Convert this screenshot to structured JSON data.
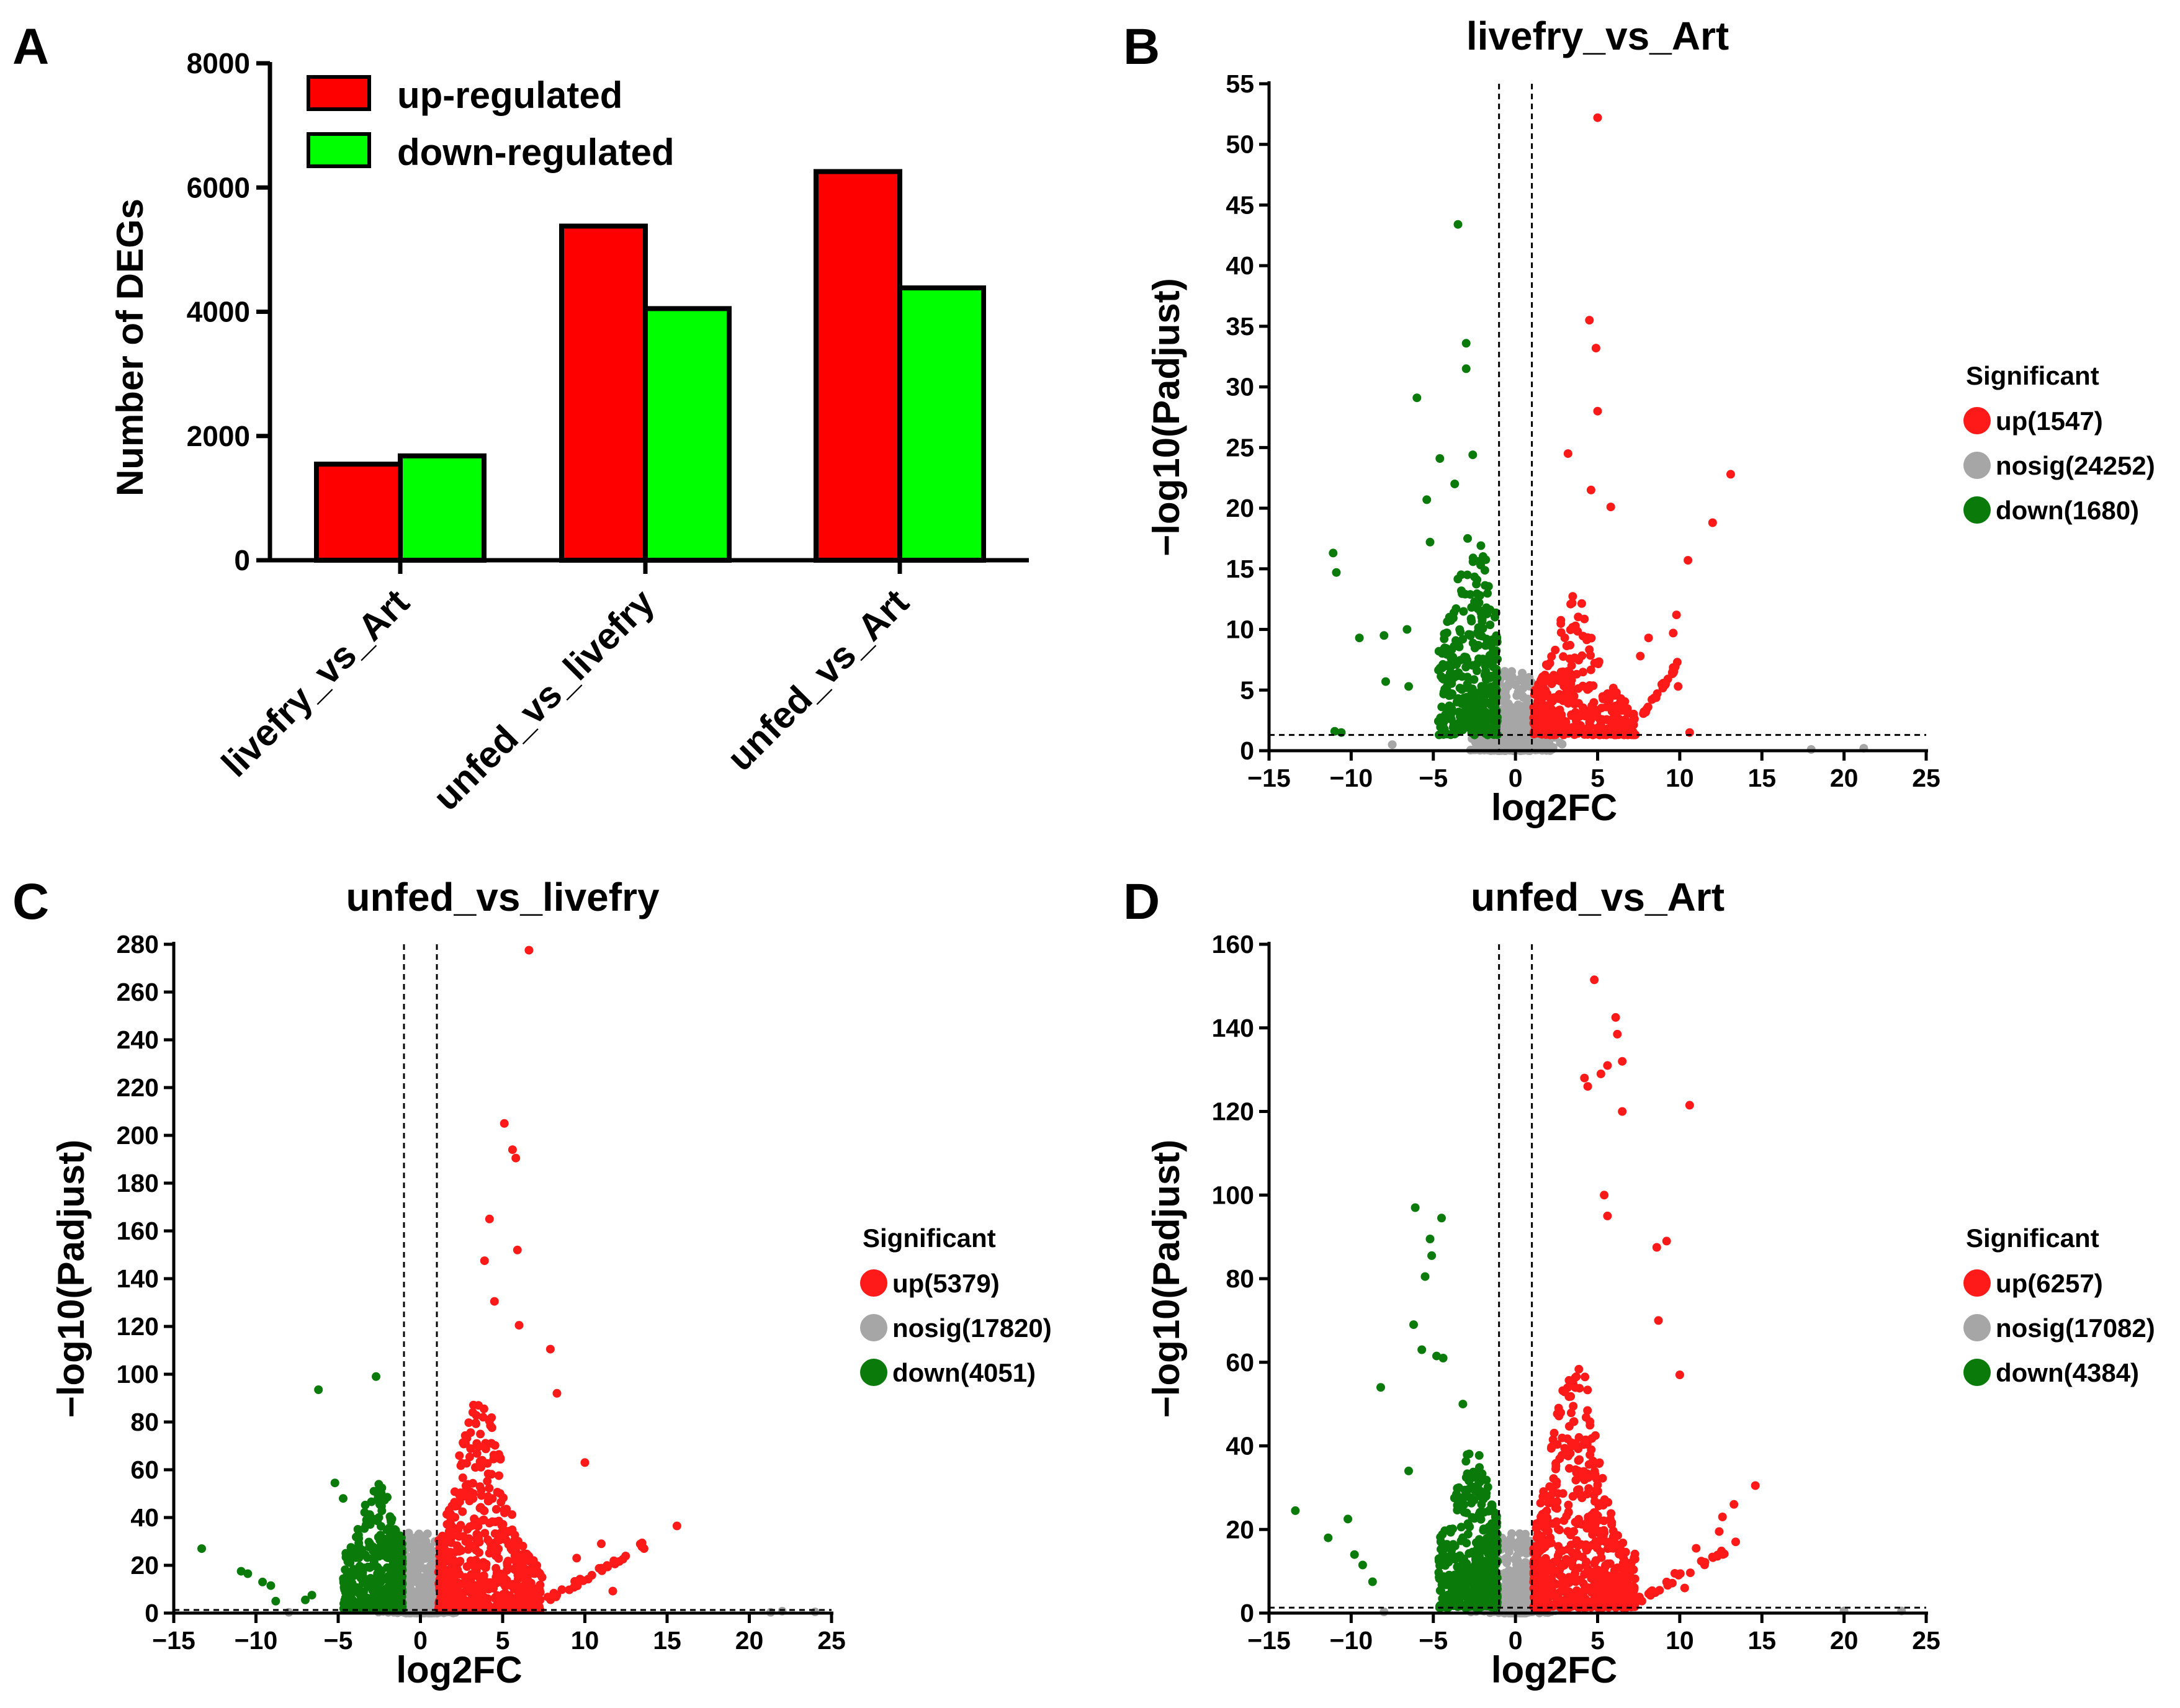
{
  "colors": {
    "up": "#ff0000",
    "down": "#00ff00",
    "volcano_up": "#ff1a1a",
    "volcano_down": "#0a7a0a",
    "nosig": "#a6a6a6",
    "axis": "#000000"
  },
  "panels": {
    "A": {
      "letter": "A"
    },
    "B": {
      "letter": "B",
      "title": "livefry_vs_Art",
      "xlabel": "log2FC",
      "ylabel": "−log10(Padjust)",
      "legend_title": "Significant",
      "legend": [
        "up(1547)",
        "nosig(24252)",
        "down(1680)"
      ]
    },
    "C": {
      "letter": "C",
      "title": "unfed_vs_livefry",
      "xlabel": "log2FC",
      "ylabel": "−log10(Padjust)",
      "legend_title": "Significant",
      "legend": [
        "up(5379)",
        "nosig(17820)",
        "down(4051)"
      ]
    },
    "D": {
      "letter": "D",
      "title": "unfed_vs_Art",
      "xlabel": "log2FC",
      "ylabel": "−log10(Padjust)",
      "legend_title": "Significant",
      "legend": [
        "up(6257)",
        "nosig(17082)",
        "down(4384)"
      ]
    }
  },
  "chart_data": [
    {
      "panel": "A",
      "type": "bar",
      "ylabel": "Number of DEGs",
      "xlabel": "",
      "categories": [
        "livefry_vs_Art",
        "unfed_vs_livefry",
        "unfed_vs_Art"
      ],
      "series": [
        {
          "name": "up-regulated",
          "color": "#ff0000",
          "values": [
            1547,
            5379,
            6257
          ]
        },
        {
          "name": "down-regulated",
          "color": "#00ff00",
          "values": [
            1680,
            4051,
            4384
          ]
        }
      ],
      "ylim": [
        0,
        8000
      ],
      "yticks": [
        0,
        2000,
        4000,
        6000,
        8000
      ],
      "legend_position": "top-left"
    },
    {
      "panel": "B",
      "type": "scatter",
      "subtype": "volcano",
      "title": "livefry_vs_Art",
      "xlabel": "log2FC",
      "ylabel": "−log10(Padjust)",
      "xlim": [
        -15,
        25
      ],
      "ylim": [
        0,
        55
      ],
      "xticks": [
        -15,
        -10,
        -5,
        0,
        5,
        10,
        15,
        20,
        25
      ],
      "yticks": [
        0,
        5,
        10,
        15,
        20,
        25,
        30,
        35,
        40,
        45,
        50,
        55
      ],
      "fc_threshold": [
        -1,
        1
      ],
      "padj_threshold": 1.3,
      "counts": {
        "up": 1547,
        "nosig": 24252,
        "down": 1680
      },
      "outliers": {
        "up": [
          [
            5,
            52.2
          ],
          [
            4.5,
            35.5
          ],
          [
            4.9,
            33.2
          ],
          [
            5,
            28
          ],
          [
            3.2,
            24.5
          ],
          [
            4.6,
            21.5
          ],
          [
            5.8,
            20.1
          ],
          [
            13.1,
            22.8
          ],
          [
            12,
            18.8
          ],
          [
            10.5,
            15.7
          ],
          [
            9.8,
            11.2
          ],
          [
            9.6,
            9.7
          ],
          [
            10.6,
            1.5
          ],
          [
            9.9,
            5.3
          ],
          [
            8.1,
            9.3
          ],
          [
            7.6,
            7.8
          ]
        ],
        "down": [
          [
            -3.5,
            43.4
          ],
          [
            -3,
            33.6
          ],
          [
            -3,
            31.5
          ],
          [
            -6,
            29.1
          ],
          [
            -11.1,
            16.3
          ],
          [
            -10.9,
            14.7
          ],
          [
            -11,
            1.6
          ],
          [
            -10.6,
            1.5
          ],
          [
            -9.5,
            9.3
          ],
          [
            -8,
            9.5
          ],
          [
            -7.9,
            5.7
          ],
          [
            -6.6,
            10
          ],
          [
            -6.5,
            5.3
          ],
          [
            -5.2,
            17.2
          ],
          [
            -4.6,
            24.1
          ],
          [
            -3.7,
            22
          ],
          [
            -5.4,
            20.7
          ],
          [
            -2.6,
            24.4
          ]
        ],
        "nosig": [
          [
            21.2,
            0.2
          ],
          [
            18,
            0.1
          ],
          [
            -7.5,
            0.5
          ]
        ]
      },
      "legend_title": "Significant",
      "legend": [
        "up(1547)",
        "nosig(24252)",
        "down(1680)"
      ]
    },
    {
      "panel": "C",
      "type": "scatter",
      "subtype": "volcano",
      "title": "unfed_vs_livefry",
      "xlabel": "log2FC",
      "ylabel": "−log10(Padjust)",
      "xlim": [
        -15,
        25
      ],
      "ylim": [
        0,
        280
      ],
      "xticks": [
        -15,
        -10,
        -5,
        0,
        5,
        10,
        15,
        20,
        25
      ],
      "yticks": [
        0,
        20,
        40,
        60,
        80,
        100,
        120,
        140,
        160,
        180,
        200,
        220,
        240,
        260,
        280
      ],
      "fc_threshold": [
        -1,
        1
      ],
      "padj_threshold": 1.3,
      "counts": {
        "up": 5379,
        "nosig": 17820,
        "down": 4051
      },
      "outliers": {
        "up": [
          [
            6.6,
            277.5
          ],
          [
            5.1,
            205
          ],
          [
            5.6,
            194
          ],
          [
            5.8,
            190.5
          ],
          [
            4.2,
            165
          ],
          [
            5.9,
            152
          ],
          [
            3.9,
            147.5
          ],
          [
            4.5,
            130.5
          ],
          [
            6,
            120.5
          ],
          [
            7.9,
            110.5
          ],
          [
            8.3,
            92
          ],
          [
            10,
            63
          ],
          [
            15.6,
            36.5
          ],
          [
            13.6,
            27
          ],
          [
            11,
            29
          ],
          [
            9.5,
            23
          ],
          [
            10.2,
            14.2
          ],
          [
            8.6,
            9.8
          ],
          [
            7.4,
            15
          ],
          [
            11.7,
            9.2
          ]
        ],
        "down": [
          [
            -13.3,
            27
          ],
          [
            -10.9,
            17.5
          ],
          [
            -10.5,
            16.5
          ],
          [
            -9.6,
            13
          ],
          [
            -9.1,
            11.5
          ],
          [
            -8.8,
            5
          ],
          [
            -6.2,
            93.5
          ],
          [
            -2.7,
            99
          ],
          [
            -5.2,
            54.5
          ],
          [
            -4.7,
            48
          ],
          [
            -6.6,
            7.5
          ],
          [
            -7,
            5.5
          ]
        ],
        "nosig": [
          [
            24,
            0.5
          ],
          [
            22,
            0.8
          ],
          [
            21.3,
            0.3
          ],
          [
            -8,
            0.3
          ]
        ]
      },
      "legend_title": "Significant",
      "legend": [
        "up(5379)",
        "nosig(17820)",
        "down(4051)"
      ]
    },
    {
      "panel": "D",
      "type": "scatter",
      "subtype": "volcano",
      "title": "unfed_vs_Art",
      "xlabel": "log2FC",
      "ylabel": "−log10(Padjust)",
      "xlim": [
        -15,
        25
      ],
      "ylim": [
        0,
        160
      ],
      "xticks": [
        -15,
        -10,
        -5,
        0,
        5,
        10,
        15,
        20,
        25
      ],
      "yticks": [
        0,
        20,
        40,
        60,
        80,
        100,
        120,
        140,
        160
      ],
      "fc_threshold": [
        -1,
        1
      ],
      "padj_threshold": 1.3,
      "counts": {
        "up": 6257,
        "nosig": 17082,
        "down": 4384
      },
      "outliers": {
        "up": [
          [
            4.8,
            151.5
          ],
          [
            6.1,
            142.5
          ],
          [
            6.2,
            138.5
          ],
          [
            6.5,
            132
          ],
          [
            5.6,
            131
          ],
          [
            5.2,
            129
          ],
          [
            4.2,
            128
          ],
          [
            4.4,
            126
          ],
          [
            10.6,
            121.5
          ],
          [
            6.5,
            120
          ],
          [
            9.2,
            89
          ],
          [
            8.6,
            87.5
          ],
          [
            5.6,
            95
          ],
          [
            5.4,
            100
          ],
          [
            8.7,
            70
          ],
          [
            10,
            57
          ],
          [
            14.6,
            30.5
          ],
          [
            13.3,
            26
          ],
          [
            12.6,
            23
          ],
          [
            12.4,
            19.5
          ],
          [
            11,
            15.5
          ],
          [
            9.7,
            9.5
          ],
          [
            10.3,
            6
          ]
        ],
        "down": [
          [
            -13.4,
            24.5
          ],
          [
            -11.4,
            18
          ],
          [
            -10.2,
            22.5
          ],
          [
            -9.8,
            14
          ],
          [
            -9.3,
            11.5
          ],
          [
            -8.7,
            7.5
          ],
          [
            -8.2,
            54
          ],
          [
            -6.1,
            97
          ],
          [
            -4.5,
            94.5
          ],
          [
            -5.2,
            89.5
          ],
          [
            -5.1,
            85.5
          ],
          [
            -5.5,
            80.5
          ],
          [
            -6.2,
            69
          ],
          [
            -5.7,
            63
          ],
          [
            -4.8,
            61.5
          ],
          [
            -4.4,
            61
          ],
          [
            -3.2,
            50
          ],
          [
            -6.5,
            34
          ]
        ],
        "nosig": [
          [
            23.5,
            0.5
          ],
          [
            20,
            0.5
          ],
          [
            -8,
            0.3
          ]
        ]
      },
      "legend_title": "Significant",
      "legend": [
        "up(6257)",
        "nosig(17082)",
        "down(4384)"
      ]
    }
  ]
}
